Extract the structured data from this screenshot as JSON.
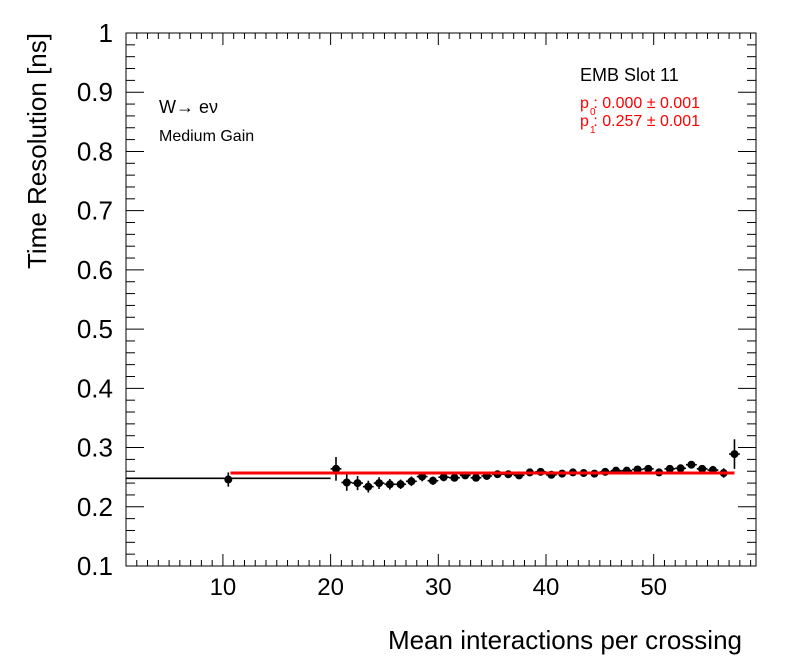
{
  "chart_data": {
    "type": "scatter",
    "xlabel": "Mean interactions per crossing",
    "ylabel": "Time Resolution [ns]",
    "xlim": [
      1,
      59.5
    ],
    "ylim": [
      0.1,
      1.0
    ],
    "x_ticks": [
      10,
      20,
      30,
      40,
      50
    ],
    "x_tick_labels": [
      "10",
      "20",
      "30",
      "40",
      "50"
    ],
    "y_ticks": [
      0.1,
      0.2,
      0.3,
      0.4,
      0.5,
      0.6,
      0.7,
      0.8,
      0.9,
      1.0
    ],
    "y_tick_labels": [
      "0.1",
      "0.2",
      "0.3",
      "0.4",
      "0.5",
      "0.6",
      "0.7",
      "0.8",
      "0.9",
      "1"
    ],
    "annotations": {
      "channel": "W→ eν",
      "gain": "Medium Gain",
      "slot": "EMB Slot 11",
      "p0_text": "p : 0.000 ± 0.001",
      "p0_sub": "0",
      "p1_text": "p : 0.257 ± 0.001",
      "p1_sub": "1"
    },
    "fit": {
      "p0": 0.0,
      "p1": 0.257,
      "x_range": [
        10.7,
        57.5
      ],
      "color": "#ff0000"
    },
    "series": [
      {
        "name": "data",
        "color": "#000000",
        "points": [
          {
            "x": 1.0,
            "x_err": 0,
            "y": 0.248,
            "y_err": 0,
            "x_hi": 20.0
          },
          {
            "x": 10.5,
            "x_err": 0,
            "y": 0.246,
            "y_err": 0.012
          },
          {
            "x": 20.5,
            "x_err": 0.5,
            "y": 0.264,
            "y_err": 0.02
          },
          {
            "x": 21.5,
            "x_err": 0.5,
            "y": 0.241,
            "y_err": 0.014
          },
          {
            "x": 22.5,
            "x_err": 0.5,
            "y": 0.24,
            "y_err": 0.012
          },
          {
            "x": 23.5,
            "x_err": 0.5,
            "y": 0.234,
            "y_err": 0.01
          },
          {
            "x": 24.5,
            "x_err": 0.5,
            "y": 0.24,
            "y_err": 0.01
          },
          {
            "x": 25.5,
            "x_err": 0.5,
            "y": 0.238,
            "y_err": 0.009
          },
          {
            "x": 26.5,
            "x_err": 0.5,
            "y": 0.238,
            "y_err": 0.008
          },
          {
            "x": 27.5,
            "x_err": 0.5,
            "y": 0.243,
            "y_err": 0.008
          },
          {
            "x": 28.5,
            "x_err": 0.5,
            "y": 0.251,
            "y_err": 0.008
          },
          {
            "x": 29.5,
            "x_err": 0.5,
            "y": 0.244,
            "y_err": 0.007
          },
          {
            "x": 30.5,
            "x_err": 0.5,
            "y": 0.25,
            "y_err": 0.007
          },
          {
            "x": 31.5,
            "x_err": 0.5,
            "y": 0.249,
            "y_err": 0.006
          },
          {
            "x": 32.5,
            "x_err": 0.5,
            "y": 0.253,
            "y_err": 0.006
          },
          {
            "x": 33.5,
            "x_err": 0.5,
            "y": 0.249,
            "y_err": 0.006
          },
          {
            "x": 34.5,
            "x_err": 0.5,
            "y": 0.252,
            "y_err": 0.006
          },
          {
            "x": 35.5,
            "x_err": 0.5,
            "y": 0.255,
            "y_err": 0.005
          },
          {
            "x": 36.5,
            "x_err": 0.5,
            "y": 0.255,
            "y_err": 0.005
          },
          {
            "x": 37.5,
            "x_err": 0.5,
            "y": 0.253,
            "y_err": 0.005
          },
          {
            "x": 38.5,
            "x_err": 0.5,
            "y": 0.258,
            "y_err": 0.005
          },
          {
            "x": 39.5,
            "x_err": 0.5,
            "y": 0.259,
            "y_err": 0.005
          },
          {
            "x": 40.5,
            "x_err": 0.5,
            "y": 0.254,
            "y_err": 0.005
          },
          {
            "x": 41.5,
            "x_err": 0.5,
            "y": 0.256,
            "y_err": 0.005
          },
          {
            "x": 42.5,
            "x_err": 0.5,
            "y": 0.258,
            "y_err": 0.005
          },
          {
            "x": 43.5,
            "x_err": 0.5,
            "y": 0.257,
            "y_err": 0.005
          },
          {
            "x": 44.5,
            "x_err": 0.5,
            "y": 0.256,
            "y_err": 0.005
          },
          {
            "x": 45.5,
            "x_err": 0.5,
            "y": 0.259,
            "y_err": 0.005
          },
          {
            "x": 46.5,
            "x_err": 0.5,
            "y": 0.261,
            "y_err": 0.005
          },
          {
            "x": 47.5,
            "x_err": 0.5,
            "y": 0.261,
            "y_err": 0.005
          },
          {
            "x": 48.5,
            "x_err": 0.5,
            "y": 0.263,
            "y_err": 0.005
          },
          {
            "x": 49.5,
            "x_err": 0.5,
            "y": 0.264,
            "y_err": 0.005
          },
          {
            "x": 50.5,
            "x_err": 0.5,
            "y": 0.258,
            "y_err": 0.006
          },
          {
            "x": 51.5,
            "x_err": 0.5,
            "y": 0.264,
            "y_err": 0.006
          },
          {
            "x": 52.5,
            "x_err": 0.5,
            "y": 0.265,
            "y_err": 0.006
          },
          {
            "x": 53.5,
            "x_err": 0.5,
            "y": 0.271,
            "y_err": 0.006
          },
          {
            "x": 54.5,
            "x_err": 0.5,
            "y": 0.264,
            "y_err": 0.006
          },
          {
            "x": 55.5,
            "x_err": 0.5,
            "y": 0.262,
            "y_err": 0.007
          },
          {
            "x": 56.5,
            "x_err": 0.5,
            "y": 0.257,
            "y_err": 0.008
          },
          {
            "x": 57.5,
            "x_err": 0.5,
            "y": 0.289,
            "y_err": 0.025
          }
        ]
      }
    ]
  }
}
